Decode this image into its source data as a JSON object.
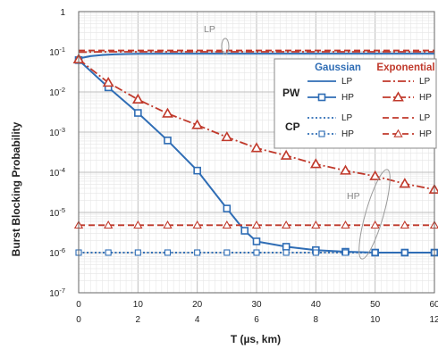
{
  "chart_data": {
    "type": "line",
    "ylabel": "Burst Blocking Probability",
    "xlabel": "T (µs, km)",
    "y_scale": "log",
    "ylim": [
      1e-07,
      1
    ],
    "y_ticks": [
      {
        "v": 1,
        "label": "1"
      },
      {
        "v": 0.1,
        "label": "10-1"
      },
      {
        "v": 0.01,
        "label": "10-2"
      },
      {
        "v": 0.001,
        "label": "10-3"
      },
      {
        "v": 0.0001,
        "label": "10-4"
      },
      {
        "v": 1e-05,
        "label": "10-5"
      },
      {
        "v": 1e-06,
        "label": "10-6"
      },
      {
        "v": 1e-07,
        "label": "10-7"
      }
    ],
    "xlim": [
      0,
      60
    ],
    "x_ticks_primary": [
      "0",
      "10",
      "20",
      "30",
      "40",
      "50",
      "60"
    ],
    "x_ticks_secondary": [
      "0",
      "2",
      "4",
      "6",
      "8",
      "10",
      "12"
    ],
    "grid": true,
    "legend": {
      "position": "top-right",
      "col_gaussian": "Gaussian",
      "col_exponential": "Exponential",
      "group_pw": "PW",
      "group_cp": "CP",
      "lp": "LP",
      "hp": "HP"
    },
    "annotations": {
      "lp": "LP",
      "hp": "HP"
    },
    "colors": {
      "gaussian": "#2f6db5",
      "exponential": "#c0392b"
    },
    "series": [
      {
        "key": "pw_gauss_lp",
        "style": "solid",
        "color": "gaussian",
        "marker": "none",
        "x": [
          0,
          2,
          4,
          6,
          8,
          10,
          15,
          20,
          30,
          40,
          50,
          60
        ],
        "y": [
          0.068,
          0.078,
          0.083,
          0.086,
          0.088,
          0.089,
          0.09,
          0.09,
          0.09,
          0.09,
          0.09,
          0.09
        ]
      },
      {
        "key": "pw_gauss_hp",
        "style": "solid",
        "color": "gaussian",
        "marker": "square",
        "x": [
          0,
          5,
          10,
          15,
          20,
          25,
          28,
          30,
          35,
          40,
          45,
          50,
          55,
          60
        ],
        "y": [
          0.062,
          0.013,
          0.003,
          0.00062,
          0.00011,
          1.25e-05,
          3.5e-06,
          1.9e-06,
          1.4e-06,
          1.15e-06,
          1.05e-06,
          1e-06,
          1e-06,
          1e-06
        ]
      },
      {
        "key": "cp_gauss_lp",
        "style": "dotted",
        "color": "gaussian",
        "marker": "none",
        "x": [
          0,
          60
        ],
        "y": [
          1e-06,
          1e-06
        ]
      },
      {
        "key": "cp_gauss_hp",
        "style": "dotted",
        "color": "gaussian",
        "marker": "square-open",
        "x": [
          0,
          5,
          10,
          15,
          20,
          25,
          30,
          35,
          40,
          45,
          50,
          55,
          60
        ],
        "y": [
          1e-06,
          1e-06,
          1e-06,
          1e-06,
          1e-06,
          1e-06,
          1e-06,
          1e-06,
          1e-06,
          1e-06,
          1e-06,
          1e-06,
          1e-06
        ]
      },
      {
        "key": "pw_exp_lp",
        "style": "dashdot",
        "color": "exponential",
        "marker": "none",
        "x": [
          0,
          5,
          10,
          20,
          30,
          40,
          50,
          60
        ],
        "y": [
          0.098,
          0.1,
          0.1,
          0.1,
          0.1,
          0.1,
          0.1,
          0.1
        ]
      },
      {
        "key": "pw_exp_hp",
        "style": "dashdot",
        "color": "exponential",
        "marker": "triangle",
        "x": [
          0,
          5,
          10,
          15,
          20,
          25,
          30,
          35,
          40,
          45,
          50,
          55,
          60
        ],
        "y": [
          0.065,
          0.017,
          0.0065,
          0.0029,
          0.0015,
          0.00075,
          0.0004,
          0.00026,
          0.00016,
          0.00011,
          8e-05,
          5.2e-05,
          3.7e-05
        ]
      },
      {
        "key": "cp_exp_lp",
        "style": "dashed",
        "color": "exponential",
        "marker": "none",
        "x": [
          0,
          60
        ],
        "y": [
          0.108,
          0.108
        ]
      },
      {
        "key": "cp_exp_hp",
        "style": "dashed",
        "color": "exponential",
        "marker": "triangle-open",
        "x": [
          0,
          5,
          10,
          15,
          20,
          25,
          30,
          35,
          40,
          45,
          50,
          55,
          60
        ],
        "y": [
          4.8e-06,
          4.8e-06,
          4.8e-06,
          4.8e-06,
          4.8e-06,
          4.8e-06,
          4.8e-06,
          4.8e-06,
          4.8e-06,
          4.8e-06,
          4.8e-06,
          4.8e-06,
          4.8e-06
        ]
      }
    ]
  }
}
